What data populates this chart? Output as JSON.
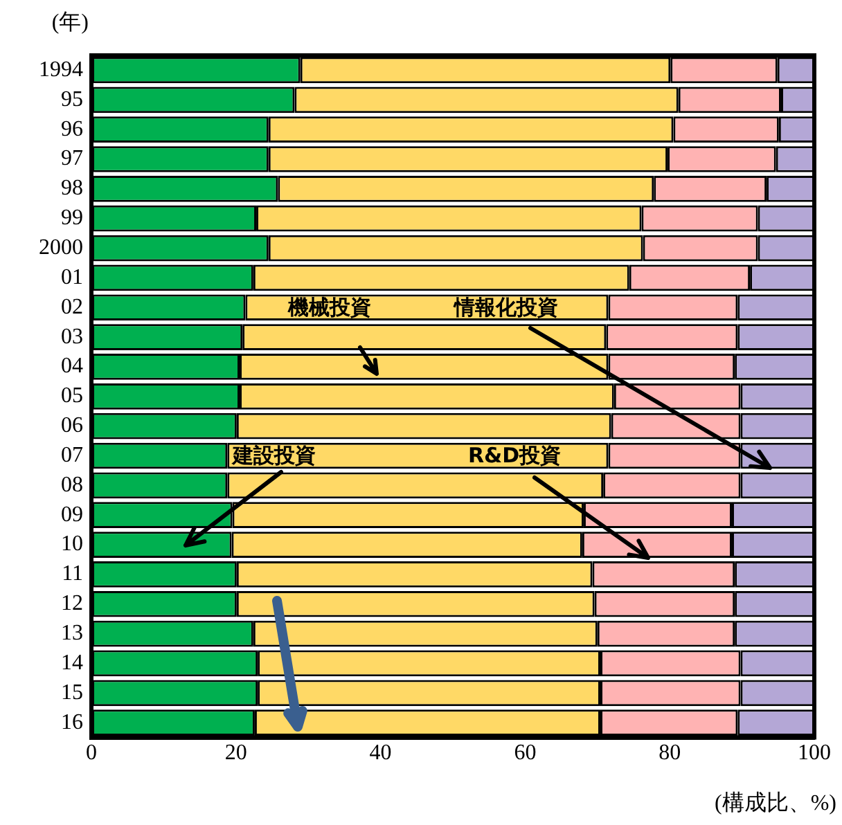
{
  "chart_data": {
    "type": "bar",
    "orientation": "horizontal",
    "stacked": true,
    "ylabel": "(年)",
    "xlabel": "(構成比、%)",
    "categories": [
      "1994",
      "95",
      "96",
      "97",
      "98",
      "99",
      "2000",
      "01",
      "02",
      "03",
      "04",
      "05",
      "06",
      "07",
      "08",
      "09",
      "10",
      "11",
      "12",
      "13",
      "14",
      "15",
      "16"
    ],
    "xlim": [
      0,
      100
    ],
    "xticks": [
      0,
      20,
      40,
      60,
      80,
      100
    ],
    "grid": false,
    "legend": false,
    "series": [
      {
        "name": "建設投資",
        "color": "#00b050",
        "values": [
          28.9,
          28.1,
          24.5,
          24.5,
          25.8,
          22.8,
          24.5,
          22.4,
          21.3,
          20.9,
          20.5,
          20.5,
          20.1,
          18.8,
          18.8,
          19.5,
          19.4,
          20.1,
          20.1,
          22.4,
          23.0,
          23.0,
          22.6
        ]
      },
      {
        "name": "機械投資",
        "color": "#ffd966",
        "values": [
          51.2,
          53.1,
          56.0,
          55.2,
          52.0,
          53.3,
          51.8,
          52.0,
          50.2,
          50.3,
          51.0,
          51.8,
          51.8,
          52.7,
          52.0,
          48.6,
          48.5,
          49.2,
          49.5,
          47.6,
          47.4,
          47.4,
          47.8
        ]
      },
      {
        "name": "R&D投資",
        "color": "#ffb3b3",
        "values": [
          14.8,
          14.2,
          14.6,
          15.0,
          15.6,
          16.1,
          15.9,
          16.7,
          17.9,
          18.2,
          17.5,
          17.5,
          17.9,
          18.3,
          19.0,
          20.5,
          20.7,
          19.7,
          19.4,
          19.0,
          19.4,
          19.4,
          19.0
        ]
      },
      {
        "name": "情報化投資",
        "color": "#b4a7d6",
        "values": [
          5.1,
          4.6,
          4.9,
          5.3,
          6.6,
          7.8,
          7.8,
          8.9,
          10.6,
          10.6,
          11.0,
          10.2,
          10.2,
          10.2,
          10.2,
          11.4,
          11.4,
          11.0,
          11.0,
          11.0,
          10.2,
          10.2,
          10.6
        ]
      }
    ]
  }
}
